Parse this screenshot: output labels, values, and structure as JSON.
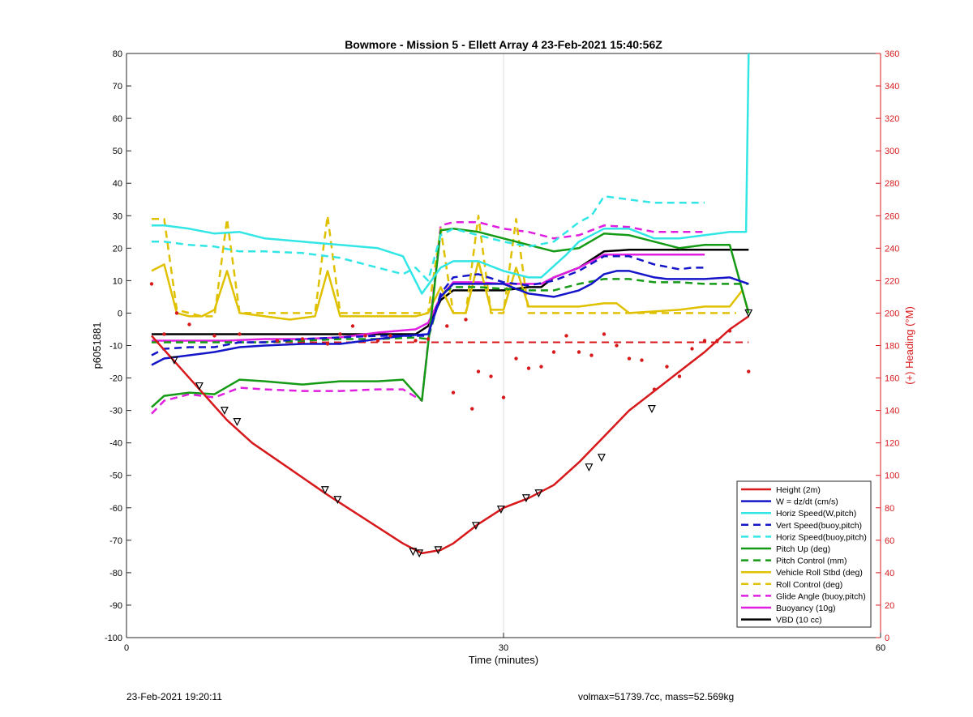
{
  "footer": {
    "date": "23-Feb-2021 19:20:11",
    "info": "volmax=51739.7cc, mass=52.569kg"
  },
  "chart_data": {
    "type": "line",
    "title": "Bowmore - Mission 5 - Ellett Array 4 23-Feb-2021 15:40:56Z",
    "xlabel": "Time (minutes)",
    "ylabel": "p6051881",
    "ylabel_right": "(+) Heading (°M)",
    "xlim": [
      0,
      60
    ],
    "ylim": [
      -100,
      80
    ],
    "ylim_right": [
      0,
      360
    ],
    "xticks": [
      0,
      30,
      60
    ],
    "yticks": [
      80,
      70,
      60,
      50,
      40,
      30,
      20,
      10,
      0,
      -10,
      -20,
      -30,
      -40,
      -50,
      -60,
      -70,
      -80,
      -90,
      -100
    ],
    "yticks_right": [
      360,
      340,
      320,
      300,
      280,
      260,
      240,
      220,
      200,
      180,
      160,
      140,
      120,
      100,
      80,
      60,
      40,
      20,
      0
    ],
    "grid": "x=30 only",
    "legend_position": "bottom-right",
    "colors": {
      "red": "#d7191c",
      "blue": "#1414c8",
      "cyan": "#33e6e6",
      "green": "#159a15",
      "yellow": "#e0c100",
      "magenta": "#e01ee0",
      "black": "#000000"
    },
    "series": [
      {
        "name": "Height (2m)",
        "color": "red",
        "dash": false,
        "x": [
          2,
          5,
          8,
          10,
          13,
          16,
          18,
          20,
          22,
          23.5,
          25,
          26,
          28,
          30,
          32,
          34,
          36,
          38,
          40,
          42,
          44,
          46,
          48,
          49.5
        ],
        "y": [
          -7,
          -20,
          -33,
          -40,
          -48,
          -56,
          -61,
          -66,
          -71,
          -74,
          -73,
          -71,
          -65,
          -60,
          -57,
          -53,
          -46,
          -38,
          -30,
          -24,
          -18,
          -12,
          -5,
          -1
        ]
      },
      {
        "name": "W = dz/dt (cm/s)",
        "color": "blue",
        "dash": false,
        "x": [
          2,
          3,
          5,
          7,
          9,
          11,
          14,
          17,
          20,
          22,
          24,
          25,
          26,
          28,
          30,
          32,
          34,
          36,
          37,
          38,
          39,
          40,
          41,
          42,
          43,
          44,
          46,
          48,
          49.5
        ],
        "y": [
          -16,
          -14,
          -13,
          -12,
          -10.5,
          -10,
          -9.5,
          -9.5,
          -8,
          -7,
          -6.5,
          5,
          9,
          9,
          9,
          6,
          5,
          7,
          9,
          12,
          13,
          13,
          12,
          11,
          10.5,
          10.5,
          10.5,
          11,
          9
        ]
      },
      {
        "name": "Horiz Speed(W,pitch)",
        "color": "cyan",
        "dash": false,
        "x": [
          2,
          3,
          5,
          7,
          9,
          11,
          14,
          17,
          20,
          22,
          23.5,
          25,
          26,
          28,
          30,
          32,
          33,
          35,
          36,
          38,
          40,
          42,
          44,
          46,
          48,
          49.3,
          49.5
        ],
        "y": [
          27,
          27,
          26,
          24.5,
          25,
          23,
          22,
          21,
          20,
          17.5,
          6,
          14,
          16,
          16,
          13,
          11,
          11,
          18,
          22,
          26,
          26,
          23,
          23,
          24,
          25,
          25,
          80
        ]
      },
      {
        "name": "Vert Speed(buoy,pitch)",
        "color": "blue",
        "dash": true,
        "x": [
          2,
          3,
          5,
          7,
          9,
          11,
          14,
          17,
          20,
          22,
          24,
          25,
          26,
          28,
          30,
          32,
          34,
          36,
          38,
          40,
          42,
          44,
          45,
          46
        ],
        "y": [
          -13,
          -11,
          -10.5,
          -10.5,
          -9,
          -9,
          -8,
          -7.5,
          -7,
          -7,
          -7,
          6,
          11,
          12,
          9.5,
          8.5,
          10,
          13,
          17.5,
          17.5,
          15,
          13.5,
          14,
          14
        ]
      },
      {
        "name": "Horiz Speed(buoy,pitch)",
        "color": "cyan",
        "dash": true,
        "x": [
          2,
          3,
          5,
          7,
          9,
          11,
          14,
          17,
          20,
          22,
          23,
          24,
          25,
          26,
          28,
          30,
          32,
          34,
          36,
          37,
          38,
          40,
          42,
          44,
          46
        ],
        "y": [
          22,
          22,
          21,
          20.5,
          19,
          19,
          18.5,
          17,
          14,
          12,
          14,
          10,
          24,
          26,
          24,
          22,
          20.5,
          22,
          28,
          30,
          36,
          35,
          34,
          34,
          34
        ]
      },
      {
        "name": "Pitch Up (deg)",
        "color": "green",
        "dash": false,
        "x": [
          2,
          3,
          5,
          7,
          9,
          11,
          14,
          17,
          20,
          22,
          23.5,
          25,
          26,
          28,
          30,
          32,
          34,
          36,
          38,
          40,
          42,
          43,
          44,
          46,
          48,
          49.5
        ],
        "y": [
          -29,
          -25.5,
          -24.5,
          -25,
          -20.5,
          -21,
          -22,
          -21,
          -21,
          -20.5,
          -27,
          25.5,
          26,
          25,
          23,
          21,
          19,
          20,
          24.5,
          24,
          22,
          21,
          20,
          21,
          21,
          0
        ]
      },
      {
        "name": "Pitch Control (mm)",
        "color": "green",
        "dash": true,
        "x": [
          2,
          5,
          8,
          11,
          14,
          17,
          20,
          23,
          24,
          25,
          26,
          28,
          30,
          32,
          34,
          36,
          38,
          40,
          42,
          44,
          46,
          48,
          49.5
        ],
        "y": [
          -9,
          -9,
          -9,
          -9,
          -8.5,
          -8,
          -8,
          -7.5,
          -8,
          6,
          8,
          8,
          7.5,
          7,
          7,
          9,
          10.5,
          10.5,
          9.5,
          9.5,
          9,
          9,
          9
        ]
      },
      {
        "name": "Vehicle Roll Stbd (deg)",
        "color": "yellow",
        "dash": false,
        "x": [
          2,
          3,
          4,
          5,
          6,
          7,
          8,
          9,
          11,
          13,
          15,
          16,
          17,
          19,
          21,
          23,
          24,
          25,
          26,
          27,
          28,
          29,
          30,
          31,
          32,
          34,
          36,
          38,
          39,
          40,
          42,
          44,
          46,
          48,
          49,
          49.5
        ],
        "y": [
          13,
          15,
          0,
          -1,
          -1,
          1,
          13,
          0,
          -1,
          -2,
          -1,
          13,
          -1,
          -1,
          -1,
          -1,
          0,
          8,
          0,
          0,
          16,
          1,
          1,
          14,
          2,
          2,
          2,
          3,
          3,
          0,
          0.5,
          1,
          2,
          2,
          7,
          0
        ]
      },
      {
        "name": "Roll Control (deg)",
        "color": "yellow",
        "dash": true,
        "x": [
          2,
          3,
          4,
          5,
          6,
          7,
          8,
          9,
          11,
          13,
          15,
          16,
          17,
          19,
          21,
          23,
          24,
          25,
          26,
          27,
          28,
          29,
          30,
          31,
          32,
          33,
          35,
          37,
          39,
          41,
          43,
          45,
          47,
          48.5
        ],
        "y": [
          29,
          29,
          1,
          0,
          -1,
          -1,
          29,
          0,
          0,
          0,
          0,
          30,
          0,
          0,
          0,
          0,
          0,
          26,
          0,
          0,
          30,
          0,
          0,
          29,
          0,
          0,
          0,
          0,
          0,
          0,
          0,
          0,
          0,
          0
        ]
      },
      {
        "name": "Glide Angle (buoy,pitch)",
        "color": "magenta",
        "dash": true,
        "x": [
          2,
          3,
          5,
          7,
          9,
          11,
          14,
          17,
          20,
          22,
          23.5,
          25,
          26,
          28,
          30,
          32,
          34,
          36,
          38,
          40,
          42,
          44,
          46
        ],
        "y": [
          -31,
          -27,
          -25,
          -26,
          -23,
          -23.5,
          -24,
          -24,
          -23.5,
          -23.5,
          -27,
          27,
          28,
          28,
          26,
          25,
          23,
          24,
          27,
          26.5,
          25,
          25,
          25
        ]
      },
      {
        "name": "Buoyancy (10g)",
        "color": "magenta",
        "dash": false,
        "x": [
          2,
          5,
          8,
          11,
          14,
          17,
          20,
          23,
          24,
          25,
          26,
          28,
          30,
          32,
          33,
          34,
          36,
          38,
          40,
          42,
          44,
          46
        ],
        "y": [
          -8.5,
          -8.5,
          -8.5,
          -8,
          -8,
          -7.5,
          -6,
          -5,
          -3,
          5,
          9.5,
          9.5,
          9,
          9,
          9,
          11,
          14,
          18,
          18,
          18,
          18,
          18
        ]
      },
      {
        "name": "VBD (10 cc)",
        "color": "black",
        "dash": false,
        "x": [
          2,
          5,
          8,
          11,
          14,
          17,
          20,
          23,
          24,
          25,
          26,
          28,
          30,
          31,
          32,
          33,
          34,
          36,
          38,
          40,
          42,
          44,
          46,
          48,
          49.5
        ],
        "y": [
          -6.5,
          -6.5,
          -6.5,
          -6.5,
          -6.5,
          -6.5,
          -6.5,
          -6.5,
          -4,
          4,
          7,
          7,
          7,
          7.5,
          8,
          8,
          11,
          14,
          19,
          19.5,
          19.5,
          19.5,
          19.5,
          19.5,
          19.5
        ]
      }
    ],
    "reference_line": {
      "color": "red",
      "dash": true,
      "y": -9,
      "x": [
        2,
        49.5
      ]
    },
    "heading_points": {
      "color": "red",
      "x": [
        2,
        3,
        4,
        5,
        7,
        9,
        12,
        14,
        16,
        17,
        18,
        19,
        20,
        21,
        23,
        24,
        25.5,
        26,
        27,
        27.5,
        28,
        29,
        30,
        31,
        32,
        33,
        34,
        35,
        36,
        37,
        38,
        39,
        40,
        41,
        42,
        43,
        44,
        45,
        46,
        47,
        48,
        49.5
      ],
      "heading": [
        218,
        187,
        200,
        193,
        186,
        187,
        183,
        184,
        181,
        187,
        192,
        186,
        183,
        186,
        183,
        184,
        192,
        151,
        196,
        141,
        164,
        161,
        148,
        172,
        166,
        167,
        176,
        186,
        176,
        174,
        187,
        180,
        172,
        171,
        153,
        167,
        161,
        178,
        183,
        183,
        189,
        164
      ]
    },
    "markers": {
      "x": [
        3.8,
        5.8,
        7.8,
        8.8,
        15.8,
        16.8,
        22.8,
        23.3,
        24.8,
        27.8,
        29.8,
        31.8,
        32.8,
        36.8,
        37.8,
        41.8,
        49.5
      ],
      "y": [
        -14.5,
        -22.5,
        -30,
        -33.5,
        -54.5,
        -57.5,
        -73.5,
        -74,
        -73,
        -65.5,
        -60.5,
        -57,
        -55.5,
        -47.5,
        -44.5,
        -29.5,
        0
      ]
    },
    "legend_entries": [
      "Height (2m)",
      "W = dz/dt (cm/s)",
      "Horiz Speed(W,pitch)",
      "Vert Speed(buoy,pitch)",
      "Horiz Speed(buoy,pitch)",
      "Pitch Up (deg)",
      "Pitch Control (mm)",
      "Vehicle Roll Stbd (deg)",
      "Roll Control (deg)",
      "Glide Angle (buoy,pitch)",
      "Buoyancy (10g)",
      "VBD (10 cc)"
    ]
  }
}
